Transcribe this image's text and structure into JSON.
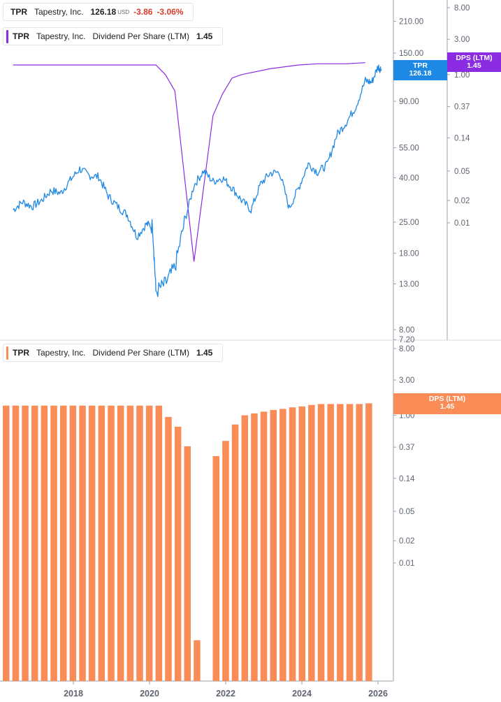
{
  "colors": {
    "price": "#1e88e5",
    "dps_line": "#8b2be2",
    "dps_bar": "#fa8c57",
    "axis": "#9aa0a6"
  },
  "legend_top": {
    "symbol": "TPR",
    "name": "Tapestry, Inc.",
    "price": "126.18",
    "currency": "USD",
    "change": "-3.86",
    "change_pct": "-3.06%"
  },
  "legend_dps_top": {
    "symbol": "TPR",
    "name": "Tapestry, Inc.",
    "metric": "Dividend Per Share (LTM)",
    "value": "1.45"
  },
  "legend_dps_bottom": {
    "symbol": "TPR",
    "name": "Tapestry, Inc.",
    "metric": "Dividend Per Share (LTM)",
    "value": "1.45"
  },
  "tags": {
    "price": {
      "symbol": "TPR",
      "value": "126.18"
    },
    "dps_top": {
      "label": "DPS (LTM)",
      "value": "1.45"
    },
    "dps_bottom": {
      "label": "DPS (LTM)",
      "value": "1.45"
    }
  },
  "chart_data": [
    {
      "type": "line",
      "scale": "log",
      "price_axis_ticks": [
        "210.00",
        "150.00",
        "90.00",
        "55.00",
        "40.00",
        "25.00",
        "18.00",
        "13.00",
        "8.00",
        "7.20"
      ],
      "dps_axis_ticks": [
        "8.00",
        "3.00",
        "1.00",
        "0.37",
        "0.14",
        "0.05",
        "0.02",
        "0.01"
      ],
      "series": [
        {
          "name": "TPR",
          "axis": "price",
          "points": [
            [
              "2016-06",
              28.5
            ],
            [
              "2016-09",
              31.0
            ],
            [
              "2016-12",
              29.5
            ],
            [
              "2017-03",
              31.5
            ],
            [
              "2017-06",
              35.0
            ],
            [
              "2017-09",
              34.0
            ],
            [
              "2017-12",
              39.0
            ],
            [
              "2018-03",
              44.0
            ],
            [
              "2018-06",
              41.0
            ],
            [
              "2018-09",
              40.5
            ],
            [
              "2018-12",
              33.0
            ],
            [
              "2019-03",
              29.5
            ],
            [
              "2019-06",
              27.0
            ],
            [
              "2019-09",
              21.5
            ],
            [
              "2019-12",
              24.5
            ],
            [
              "2020-02",
              24.0
            ],
            [
              "2020-03",
              12.0
            ],
            [
              "2020-06",
              13.0
            ],
            [
              "2020-09",
              15.5
            ],
            [
              "2020-12",
              25.0
            ],
            [
              "2021-03",
              37.0
            ],
            [
              "2021-06",
              43.0
            ],
            [
              "2021-09",
              38.5
            ],
            [
              "2021-12",
              40.0
            ],
            [
              "2022-03",
              36.0
            ],
            [
              "2022-06",
              31.5
            ],
            [
              "2022-09",
              28.5
            ],
            [
              "2022-12",
              37.5
            ],
            [
              "2023-03",
              42.0
            ],
            [
              "2023-06",
              42.5
            ],
            [
              "2023-09",
              29.0
            ],
            [
              "2023-12",
              36.0
            ],
            [
              "2024-03",
              46.5
            ],
            [
              "2024-06",
              42.5
            ],
            [
              "2024-09",
              46.0
            ],
            [
              "2024-12",
              63.0
            ],
            [
              "2025-03",
              72.0
            ],
            [
              "2025-06",
              85.0
            ],
            [
              "2025-09",
              112.0
            ],
            [
              "2025-11",
              110.0
            ],
            [
              "2026-01",
              130.0
            ],
            [
              "2026-02",
              126.18
            ]
          ]
        },
        {
          "name": "Dividend Per Share (LTM)",
          "axis": "dps",
          "points": [
            [
              "2016-06",
              1.35
            ],
            [
              "2020-03",
              1.35
            ],
            [
              "2020-06",
              1.0
            ],
            [
              "2020-09",
              0.6
            ],
            [
              "2021-03",
              0.003
            ],
            [
              "2021-09",
              0.28
            ],
            [
              "2021-12",
              0.55
            ],
            [
              "2022-03",
              0.9
            ],
            [
              "2022-06",
              1.0
            ],
            [
              "2023-03",
              1.2
            ],
            [
              "2023-12",
              1.35
            ],
            [
              "2024-06",
              1.4
            ],
            [
              "2025-03",
              1.4
            ],
            [
              "2025-09",
              1.45
            ]
          ]
        }
      ]
    },
    {
      "type": "bar",
      "scale": "log",
      "axis_ticks": [
        "8.00",
        "3.00",
        "1.00",
        "0.37",
        "0.14",
        "0.05",
        "0.02",
        "0.01"
      ],
      "x_axis_ticks": [
        "2018",
        "2020",
        "2022",
        "2024",
        "2026"
      ],
      "series": [
        {
          "name": "Dividend Per Share (LTM)",
          "categories": [
            "2016-Q2",
            "2016-Q3",
            "2016-Q4",
            "2017-Q1",
            "2017-Q2",
            "2017-Q3",
            "2017-Q4",
            "2018-Q1",
            "2018-Q2",
            "2018-Q3",
            "2018-Q4",
            "2019-Q1",
            "2019-Q2",
            "2019-Q3",
            "2019-Q4",
            "2020-Q1",
            "2020-Q2",
            "2020-Q3",
            "2020-Q4",
            "2021-Q1",
            "2021-Q2",
            "2021-Q3",
            "2021-Q4",
            "2022-Q1",
            "2022-Q2",
            "2022-Q3",
            "2022-Q4",
            "2023-Q1",
            "2023-Q2",
            "2023-Q3",
            "2023-Q4",
            "2024-Q1",
            "2024-Q2",
            "2024-Q3",
            "2024-Q4",
            "2025-Q1",
            "2025-Q2",
            "2025-Q3",
            "2025-Q4"
          ],
          "values": [
            1.35,
            1.35,
            1.35,
            1.35,
            1.35,
            1.35,
            1.35,
            1.35,
            1.35,
            1.35,
            1.35,
            1.35,
            1.35,
            1.35,
            1.35,
            1.35,
            1.35,
            0.95,
            0.7,
            0.38,
            0.0009,
            null,
            0.28,
            0.45,
            0.75,
            1.0,
            1.06,
            1.12,
            1.18,
            1.22,
            1.28,
            1.32,
            1.38,
            1.42,
            1.42,
            1.42,
            1.42,
            1.42,
            1.45
          ]
        }
      ]
    }
  ]
}
